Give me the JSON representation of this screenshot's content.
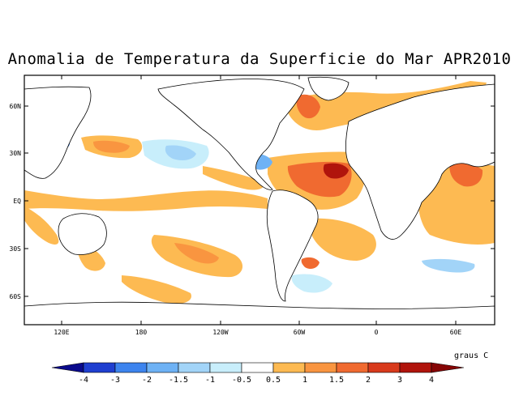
{
  "title": "Anomalia de Temperatura da Superficie do Mar APR2010",
  "map": {
    "lat_labels": [
      "60N",
      "30N",
      "EQ",
      "30S",
      "60S"
    ],
    "lon_labels": [
      "120E",
      "180",
      "120W",
      "60W",
      "0",
      "60E"
    ]
  },
  "colorbar": {
    "units": "graus C",
    "labels": [
      "-4",
      "-3",
      "-2",
      "-1.5",
      "-1",
      "-0.5",
      "0.5",
      "1",
      "1.5",
      "2",
      "3",
      "4"
    ],
    "colors": {
      "lt_m4": "#0a0a8c",
      "m4_m3": "#1f3fd0",
      "m3_m2": "#3d84ee",
      "m2_m15": "#6eb2f5",
      "m15_m1": "#a2d4f8",
      "m1_m05": "#c8eefb",
      "m05_05": "#ffffff",
      "p05_1": "#fdba52",
      "p1_15": "#f99540",
      "p15_2": "#f06a30",
      "p2_3": "#d83a1c",
      "p3_4": "#b0140c",
      "gt_4": "#860505"
    }
  }
}
